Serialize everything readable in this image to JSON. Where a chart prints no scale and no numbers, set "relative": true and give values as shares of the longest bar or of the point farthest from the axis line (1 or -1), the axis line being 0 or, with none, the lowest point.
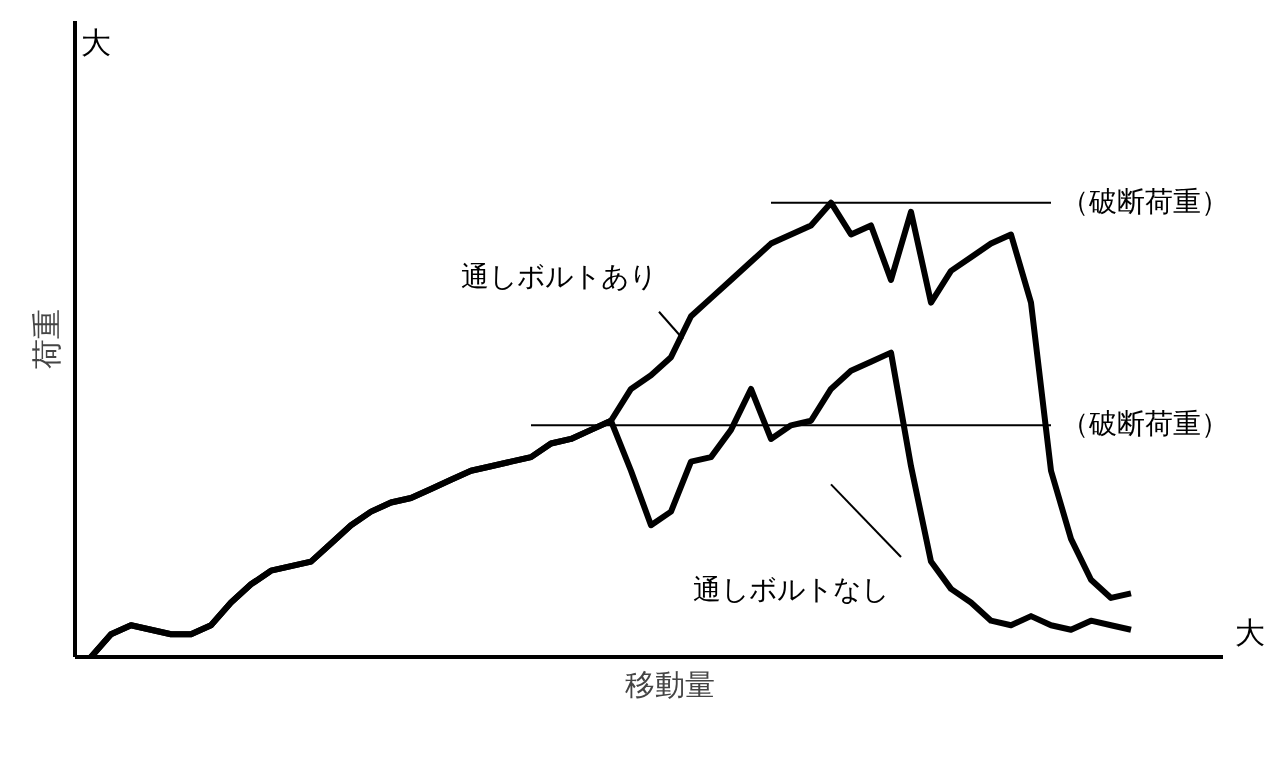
{
  "chart_data": {
    "type": "line",
    "relative": true,
    "xlabel": "移動量",
    "ylabel": "荷重",
    "categories": [
      null,
      null,
      null,
      null,
      null,
      null,
      null,
      null,
      null,
      null,
      null,
      null,
      null,
      null,
      null,
      null,
      null,
      null,
      null,
      null,
      null,
      null,
      null,
      null,
      null,
      null,
      null,
      null,
      null,
      null,
      null,
      null,
      null,
      null,
      null,
      null,
      null,
      null,
      null,
      null,
      null,
      null,
      null,
      null,
      null,
      null,
      null,
      null,
      null,
      null,
      null,
      null,
      null
    ],
    "series": [
      {
        "name": "通しボルトあり",
        "color": "#000000",
        "values": [
          0,
          0.05,
          0.07,
          0.06,
          0.05,
          0.05,
          0.07,
          0.12,
          0.16,
          0.19,
          0.2,
          0.21,
          0.25,
          0.29,
          0.32,
          0.34,
          0.35,
          0.37,
          0.39,
          0.41,
          0.42,
          0.43,
          0.44,
          0.47,
          0.48,
          0.5,
          0.52,
          0.59,
          0.62,
          0.66,
          0.75,
          0.79,
          0.83,
          0.87,
          0.91,
          0.93,
          0.95,
          1.0,
          0.93,
          0.95,
          0.83,
          0.98,
          0.78,
          0.85,
          0.88,
          0.91,
          0.93,
          0.78,
          0.41,
          0.26,
          0.17,
          0.13,
          0.14
        ]
      },
      {
        "name": "通しボルトなし",
        "color": "#000000",
        "values": [
          0,
          0.05,
          0.07,
          0.06,
          0.05,
          0.05,
          0.07,
          0.12,
          0.16,
          0.19,
          0.2,
          0.21,
          0.25,
          0.29,
          0.32,
          0.34,
          0.35,
          0.37,
          0.39,
          0.41,
          0.42,
          0.43,
          0.44,
          0.47,
          0.48,
          0.5,
          0.52,
          0.41,
          0.29,
          0.32,
          0.43,
          0.44,
          0.5,
          0.59,
          0.48,
          0.51,
          0.52,
          0.59,
          0.63,
          0.65,
          0.67,
          0.42,
          0.21,
          0.15,
          0.12,
          0.08,
          0.07,
          0.09,
          0.07,
          0.06,
          0.08,
          0.07,
          0.06
        ]
      }
    ],
    "ref_lines": [
      {
        "axis": "y",
        "value": 1.0,
        "label": "（破断荷重）",
        "color": "#000000"
      },
      {
        "axis": "y",
        "value": 0.51,
        "label": "（破断荷重）",
        "color": "#000000"
      }
    ],
    "annotations": [
      "大",
      "大"
    ],
    "marker": "none",
    "line_style": "solid"
  }
}
